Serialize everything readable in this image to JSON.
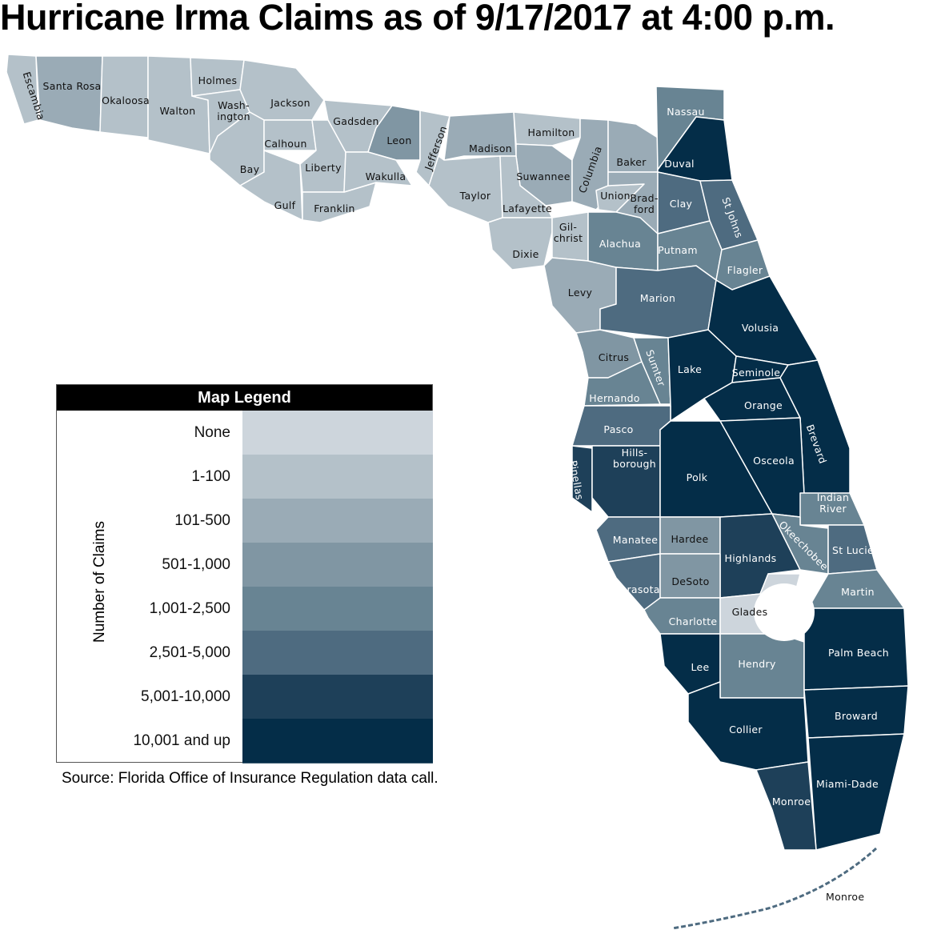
{
  "title": "Hurricane Irma Claims as of 9/17/2017 at 4:00 p.m.",
  "legend": {
    "title": "Map Legend",
    "axis_label": "Number of Claims",
    "bins": [
      {
        "label": "None",
        "color": "#cdd5dc"
      },
      {
        "label": "1-100",
        "color": "#b4c1c9"
      },
      {
        "label": "101-500",
        "color": "#9aabb6"
      },
      {
        "label": "501-1,000",
        "color": "#8096a3"
      },
      {
        "label": "1,001-2,500",
        "color": "#688493"
      },
      {
        "label": "2,501-5,000",
        "color": "#4e6b80"
      },
      {
        "label": "5,001-10,000",
        "color": "#1e4059"
      },
      {
        "label": "10,001 and up",
        "color": "#042d48"
      }
    ]
  },
  "source": "Source: Florida Office of Insurance Regulation data call.",
  "counties": [
    {
      "name": "Escambia",
      "label": "Escambia",
      "level": 1
    },
    {
      "name": "Santa Rosa",
      "label": "Santa Rosa",
      "level": 2
    },
    {
      "name": "Okaloosa",
      "label": "Okaloosa",
      "level": 1
    },
    {
      "name": "Walton",
      "label": "Walton",
      "level": 1
    },
    {
      "name": "Holmes",
      "label": "Holmes",
      "level": 1
    },
    {
      "name": "Washington",
      "label": "Wash-\nington",
      "level": 1
    },
    {
      "name": "Jackson",
      "label": "Jackson",
      "level": 1
    },
    {
      "name": "Bay",
      "label": "Bay",
      "level": 1
    },
    {
      "name": "Calhoun",
      "label": "Calhoun",
      "level": 1
    },
    {
      "name": "Gulf",
      "label": "Gulf",
      "level": 1
    },
    {
      "name": "Liberty",
      "label": "Liberty",
      "level": 1
    },
    {
      "name": "Franklin",
      "label": "Franklin",
      "level": 1
    },
    {
      "name": "Gadsden",
      "label": "Gadsden",
      "level": 1
    },
    {
      "name": "Leon",
      "label": "Leon",
      "level": 3
    },
    {
      "name": "Wakulla",
      "label": "Wakulla",
      "level": 1
    },
    {
      "name": "Jefferson",
      "label": "Jefferson",
      "level": 1
    },
    {
      "name": "Madison",
      "label": "Madison",
      "level": 2
    },
    {
      "name": "Taylor",
      "label": "Taylor",
      "level": 1
    },
    {
      "name": "Hamilton",
      "label": "Hamilton",
      "level": 1
    },
    {
      "name": "Suwannee",
      "label": "Suwannee",
      "level": 2
    },
    {
      "name": "Lafayette",
      "label": "Lafayette",
      "level": 1
    },
    {
      "name": "Dixie",
      "label": "Dixie",
      "level": 1
    },
    {
      "name": "Gilchrist",
      "label": "Gil-\nchrist",
      "level": 1
    },
    {
      "name": "Levy",
      "label": "Levy",
      "level": 2
    },
    {
      "name": "Columbia",
      "label": "Columbia",
      "level": 2
    },
    {
      "name": "Baker",
      "label": "Baker",
      "level": 2
    },
    {
      "name": "Union",
      "label": "Union",
      "level": 1
    },
    {
      "name": "Bradford",
      "label": "Brad-\nford",
      "level": 2
    },
    {
      "name": "Alachua",
      "label": "Alachua",
      "level": 4
    },
    {
      "name": "Nassau",
      "label": "Nassau",
      "level": 4
    },
    {
      "name": "Duval",
      "label": "Duval",
      "level": 7
    },
    {
      "name": "Clay",
      "label": "Clay",
      "level": 5
    },
    {
      "name": "St Johns",
      "label": "St Johns",
      "level": 5
    },
    {
      "name": "Putnam",
      "label": "Putnam",
      "level": 4
    },
    {
      "name": "Flagler",
      "label": "Flagler",
      "level": 4
    },
    {
      "name": "Marion",
      "label": "Marion",
      "level": 5
    },
    {
      "name": "Volusia",
      "label": "Volusia",
      "level": 7
    },
    {
      "name": "Citrus",
      "label": "Citrus",
      "level": 3
    },
    {
      "name": "Sumter",
      "label": "Sumter",
      "level": 4
    },
    {
      "name": "Lake",
      "label": "Lake",
      "level": 7
    },
    {
      "name": "Seminole",
      "label": "Seminole",
      "level": 7
    },
    {
      "name": "Orange",
      "label": "Orange",
      "level": 7
    },
    {
      "name": "Brevard",
      "label": "Brevard",
      "level": 7
    },
    {
      "name": "Hernando",
      "label": "Hernando",
      "level": 4
    },
    {
      "name": "Pasco",
      "label": "Pasco",
      "level": 5
    },
    {
      "name": "Pinellas",
      "label": "Pinellas",
      "level": 6
    },
    {
      "name": "Hillsborough",
      "label": "Hills-\nborough",
      "level": 6
    },
    {
      "name": "Polk",
      "label": "Polk",
      "level": 7
    },
    {
      "name": "Osceola",
      "label": "Osceola",
      "level": 7
    },
    {
      "name": "Indian River",
      "label": "Indian\nRiver",
      "level": 4
    },
    {
      "name": "Manatee",
      "label": "Manatee",
      "level": 5
    },
    {
      "name": "Hardee",
      "label": "Hardee",
      "level": 3
    },
    {
      "name": "Highlands",
      "label": "Highlands",
      "level": 6
    },
    {
      "name": "Okeechobee",
      "label": "Okeechobee",
      "level": 4
    },
    {
      "name": "St Lucie",
      "label": "St Lucie",
      "level": 5
    },
    {
      "name": "Sarasota",
      "label": "Sarasota",
      "level": 5
    },
    {
      "name": "DeSoto",
      "label": "DeSoto",
      "level": 3
    },
    {
      "name": "Charlotte",
      "label": "Charlotte",
      "level": 4
    },
    {
      "name": "Glades",
      "label": "Glades",
      "level": 0
    },
    {
      "name": "Martin",
      "label": "Martin",
      "level": 4
    },
    {
      "name": "Lee",
      "label": "Lee",
      "level": 7
    },
    {
      "name": "Hendry",
      "label": "Hendry",
      "level": 4
    },
    {
      "name": "Palm Beach",
      "label": "Palm Beach",
      "level": 7
    },
    {
      "name": "Collier",
      "label": "Collier",
      "level": 7
    },
    {
      "name": "Broward",
      "label": "Broward",
      "level": 7
    },
    {
      "name": "Miami-Dade",
      "label": "Miami-Dade",
      "level": 7
    },
    {
      "name": "Monroe",
      "label": "Monroe",
      "level": 6
    }
  ],
  "keys_label": "Monroe"
}
